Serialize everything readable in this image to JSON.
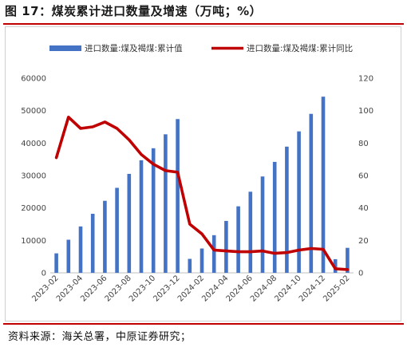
{
  "figure": {
    "title": "图 17：煤炭累计进口数量及增速（万吨；%）",
    "source": "资料来源：海关总署，中原证券研究；"
  },
  "colors": {
    "bar": "#4472c4",
    "line": "#c00000",
    "grid": "#d9d9d9"
  },
  "chart_data": {
    "type": "bar+line",
    "categories": [
      "2023-02",
      "2023-03",
      "2023-04",
      "2023-05",
      "2023-06",
      "2023-07",
      "2023-08",
      "2023-09",
      "2023-10",
      "2023-11",
      "2023-12",
      "2024-01",
      "2024-02",
      "2024-03",
      "2024-04",
      "2024-05",
      "2024-06",
      "2024-07",
      "2024-08",
      "2024-09",
      "2024-10",
      "2024-11",
      "2024-12",
      "2025-01",
      "2025-02"
    ],
    "x_tick_labels": [
      "2023-02",
      "2023-04",
      "2023-06",
      "2023-08",
      "2023-10",
      "2023-12",
      "2024-02",
      "2024-04",
      "2024-06",
      "2024-08",
      "2024-10",
      "2024-12",
      "2025-02"
    ],
    "series": [
      {
        "name": "进口数量:煤及褐煤:累计值",
        "type": "bar",
        "axis": "left",
        "values": [
          6000,
          10200,
          14300,
          18200,
          22200,
          26200,
          30500,
          34700,
          38400,
          42700,
          47400,
          4300,
          7500,
          11600,
          16000,
          20500,
          25000,
          29700,
          34200,
          38900,
          43600,
          49000,
          54300,
          4200,
          7700
        ]
      },
      {
        "name": "进口数量:煤及褐煤:累计同比",
        "type": "line",
        "axis": "right",
        "values": [
          71,
          96,
          89,
          90,
          93,
          89,
          82,
          73,
          67,
          63,
          62,
          30,
          24,
          14,
          13.5,
          13,
          13,
          13.5,
          12,
          12.5,
          14,
          15,
          14.5,
          2.5,
          2
        ]
      }
    ],
    "y_left": {
      "min": 0,
      "max": 60000,
      "ticks": [
        0,
        10000,
        20000,
        30000,
        40000,
        50000,
        60000
      ]
    },
    "y_right": {
      "min": 0,
      "max": 120,
      "ticks": [
        0,
        20,
        40,
        60,
        80,
        100,
        120
      ]
    },
    "grid": false,
    "legend_position": "top"
  }
}
